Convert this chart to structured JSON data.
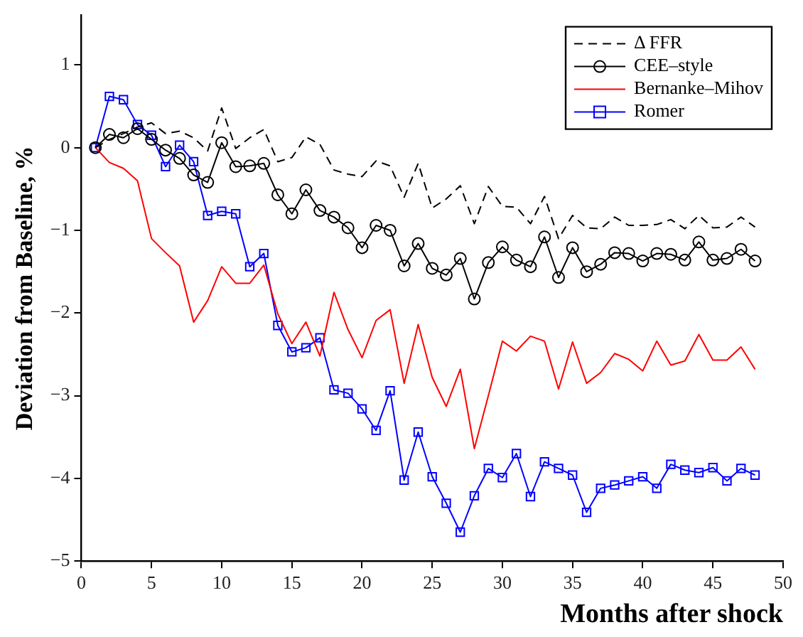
{
  "chart_data": {
    "type": "line",
    "xlabel": "Months after shock",
    "ylabel": "Deviation from Baseline, %",
    "x": [
      1,
      2,
      3,
      4,
      5,
      6,
      7,
      8,
      9,
      10,
      11,
      12,
      13,
      14,
      15,
      16,
      17,
      18,
      19,
      20,
      21,
      22,
      23,
      24,
      25,
      26,
      27,
      28,
      29,
      30,
      31,
      32,
      33,
      34,
      35,
      36,
      37,
      38,
      39,
      40,
      41,
      42,
      43,
      44,
      45,
      46,
      47,
      48
    ],
    "xlim": [
      0,
      50
    ],
    "xticks": [
      0,
      5,
      10,
      15,
      20,
      25,
      30,
      35,
      40,
      45,
      50
    ],
    "ylim": [
      -5,
      1.6
    ],
    "yticks": [
      -5,
      -4,
      -3,
      -2,
      -1,
      0,
      1
    ],
    "grid": false,
    "legend": "top right",
    "series": [
      {
        "name": "Δ FFR",
        "color": "#000000",
        "line_style": "dashed",
        "marker": "none",
        "values": [
          0,
          0.1,
          0.17,
          0.25,
          0.3,
          0.17,
          0.2,
          0.12,
          -0.04,
          0.48,
          -0.01,
          0.12,
          0.22,
          -0.17,
          -0.12,
          0.13,
          0.04,
          -0.27,
          -0.32,
          -0.35,
          -0.16,
          -0.22,
          -0.6,
          -0.19,
          -0.73,
          -0.62,
          -0.46,
          -0.92,
          -0.47,
          -0.71,
          -0.72,
          -0.92,
          -0.59,
          -1.1,
          -0.82,
          -0.97,
          -0.98,
          -0.84,
          -0.94,
          -0.94,
          -0.93,
          -0.87,
          -0.98,
          -0.82,
          -0.97,
          -0.96,
          -0.84,
          -0.96
        ]
      },
      {
        "name": "CEE–style",
        "color": "#000000",
        "line_style": "solid",
        "marker": "circle",
        "values": [
          0,
          0.16,
          0.12,
          0.23,
          0.1,
          -0.03,
          -0.13,
          -0.33,
          -0.42,
          0.06,
          -0.23,
          -0.22,
          -0.19,
          -0.57,
          -0.8,
          -0.51,
          -0.76,
          -0.84,
          -0.97,
          -1.21,
          -0.94,
          -1.0,
          -1.43,
          -1.16,
          -1.46,
          -1.54,
          -1.34,
          -1.83,
          -1.39,
          -1.2,
          -1.36,
          -1.44,
          -1.08,
          -1.57,
          -1.21,
          -1.5,
          -1.41,
          -1.27,
          -1.28,
          -1.37,
          -1.28,
          -1.29,
          -1.36,
          -1.14,
          -1.36,
          -1.34,
          -1.23,
          -1.37
        ]
      },
      {
        "name": "Bernanke–Mihov",
        "color": "#ff0000",
        "line_style": "solid",
        "marker": "none",
        "values": [
          0,
          -0.18,
          -0.25,
          -0.4,
          -1.1,
          -1.27,
          -1.43,
          -2.11,
          -1.85,
          -1.44,
          -1.64,
          -1.64,
          -1.42,
          -2.01,
          -2.37,
          -2.11,
          -2.52,
          -1.75,
          -2.2,
          -2.54,
          -2.09,
          -1.96,
          -2.85,
          -2.14,
          -2.78,
          -3.13,
          -2.68,
          -3.64,
          -3.0,
          -2.34,
          -2.46,
          -2.28,
          -2.34,
          -2.92,
          -2.35,
          -2.85,
          -2.72,
          -2.49,
          -2.56,
          -2.7,
          -2.34,
          -2.63,
          -2.58,
          -2.26,
          -2.57,
          -2.57,
          -2.41,
          -2.68
        ]
      },
      {
        "name": "Romer",
        "color": "#0000ff",
        "line_style": "solid",
        "marker": "square",
        "values": [
          0,
          0.62,
          0.58,
          0.28,
          0.15,
          -0.23,
          0.03,
          -0.17,
          -0.82,
          -0.77,
          -0.8,
          -1.44,
          -1.28,
          -2.15,
          -2.47,
          -2.42,
          -2.3,
          -2.93,
          -2.97,
          -3.16,
          -3.42,
          -2.94,
          -4.02,
          -3.44,
          -3.98,
          -4.3,
          -4.65,
          -4.21,
          -3.88,
          -3.99,
          -3.7,
          -4.22,
          -3.8,
          -3.88,
          -3.96,
          -4.41,
          -4.12,
          -4.08,
          -4.03,
          -3.98,
          -4.12,
          -3.83,
          -3.9,
          -3.93,
          -3.87,
          -4.03,
          -3.88,
          -3.96
        ]
      }
    ]
  }
}
